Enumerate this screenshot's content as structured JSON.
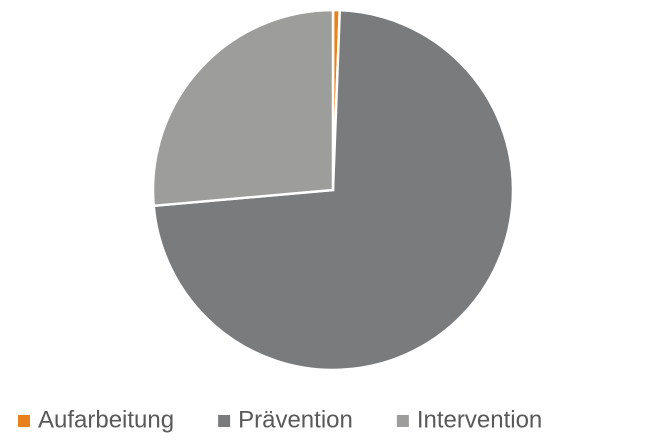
{
  "chart_data": {
    "type": "pie",
    "categories": [
      "Aufarbeitung",
      "Prävention",
      "Intervention"
    ],
    "values": [
      0.6,
      73,
      26.4
    ],
    "colors": [
      "#e8821e",
      "#7a7b7d",
      "#9d9d9b"
    ],
    "legend": "bottom"
  }
}
